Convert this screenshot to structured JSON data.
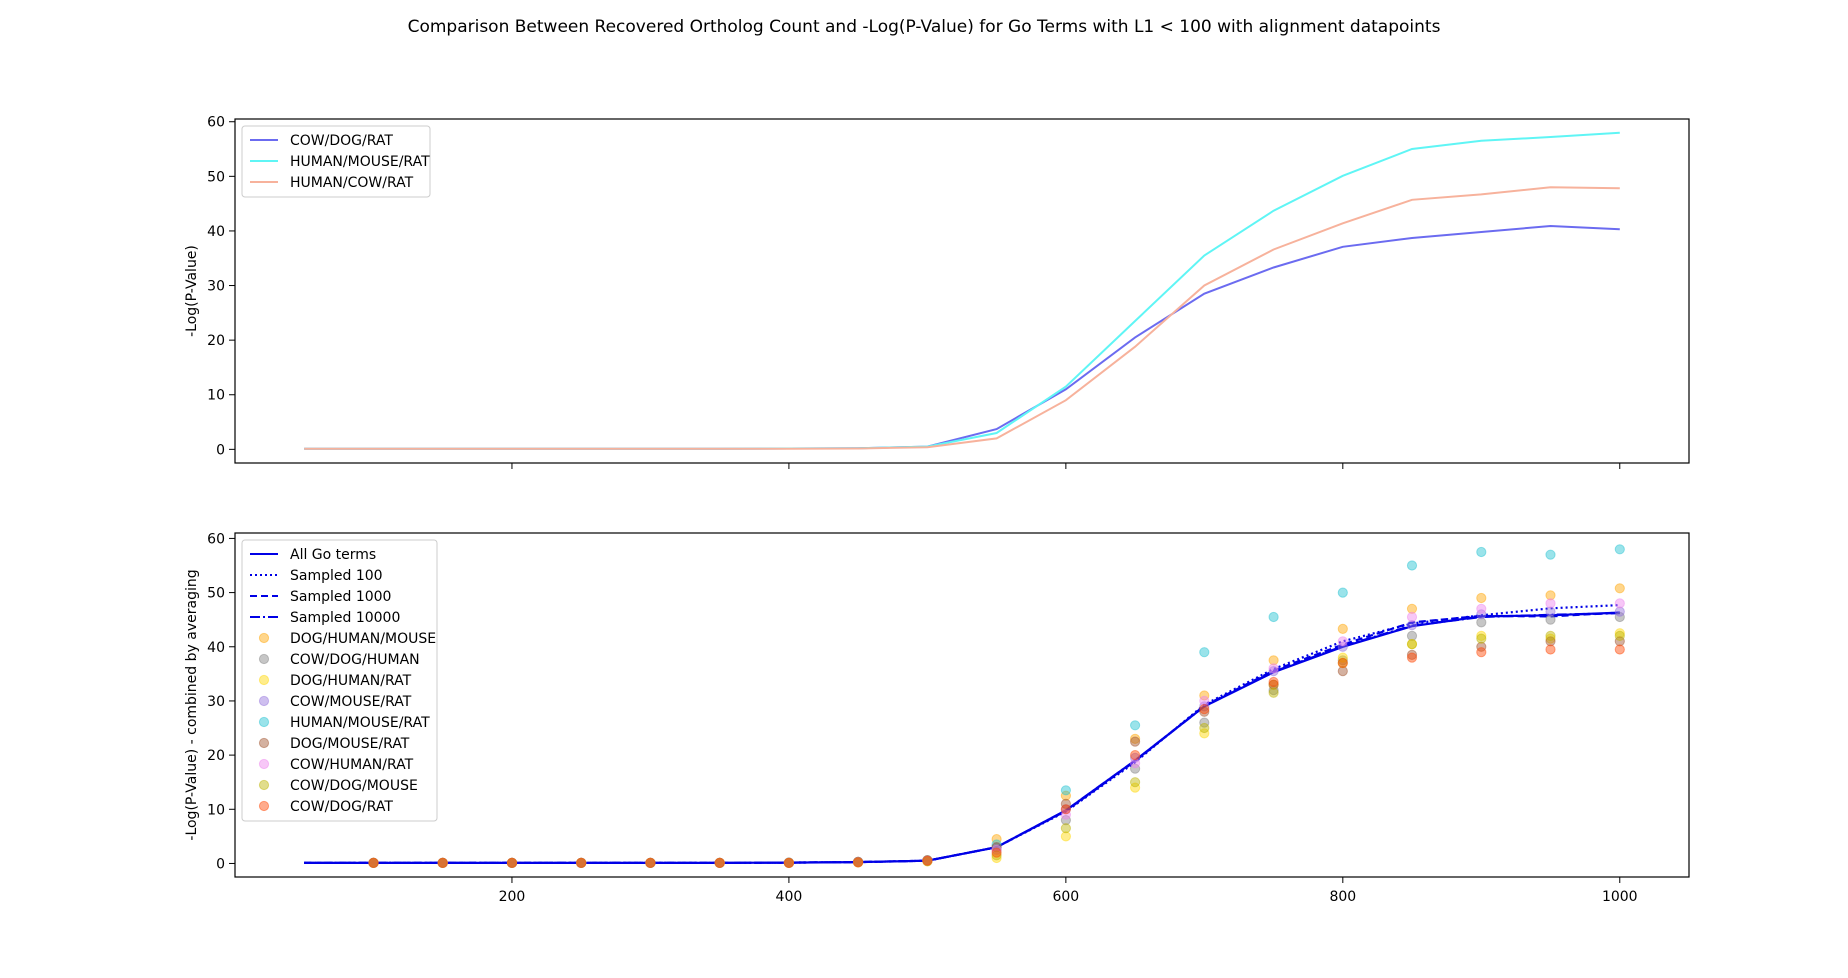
{
  "title": "Comparison Between Recovered Ortholog Count and -Log(P-Value) for Go Terms with L1 < 100 with alignment datapoints",
  "chart_data": [
    {
      "type": "line",
      "ylabel": "-Log(P-Value)",
      "xlabel": "",
      "xlim": [
        0,
        1050
      ],
      "ylim": [
        -2.5,
        60.5
      ],
      "xticks": [
        200,
        400,
        600,
        800,
        1000
      ],
      "show_xticklabels": false,
      "yticks": [
        0,
        10,
        20,
        30,
        40,
        50,
        60
      ],
      "grid": false,
      "legend": "top-left",
      "x": [
        50,
        100,
        150,
        200,
        250,
        300,
        350,
        400,
        450,
        500,
        550,
        600,
        650,
        700,
        750,
        800,
        850,
        900,
        950,
        1000
      ],
      "series": [
        {
          "name": "COW/DOG/RAT",
          "color": "#6b6bf0",
          "values": [
            0.1,
            0.1,
            0.1,
            0.1,
            0.1,
            0.1,
            0.1,
            0.15,
            0.2,
            0.5,
            3.7,
            11.0,
            20.5,
            28.5,
            33.3,
            37.1,
            38.7,
            39.8,
            40.9,
            40.3
          ]
        },
        {
          "name": "HUMAN/MOUSE/RAT",
          "color": "#5ff5f5",
          "values": [
            0.1,
            0.1,
            0.1,
            0.1,
            0.1,
            0.1,
            0.1,
            0.15,
            0.2,
            0.5,
            3.0,
            11.5,
            23.5,
            35.5,
            43.7,
            50.1,
            55.0,
            56.5,
            57.2,
            58.0
          ]
        },
        {
          "name": "HUMAN/COW/RAT",
          "color": "#f7b29c",
          "values": [
            0.1,
            0.1,
            0.1,
            0.1,
            0.1,
            0.1,
            0.1,
            0.1,
            0.15,
            0.4,
            2.0,
            9.0,
            18.8,
            30.0,
            36.6,
            41.4,
            45.7,
            46.7,
            48.0,
            47.8
          ]
        }
      ]
    },
    {
      "type": "line",
      "ylabel": "-Log(P-Value) - combined by averaging",
      "xlabel": "",
      "xlim": [
        0,
        1050
      ],
      "ylim": [
        -2.5,
        61
      ],
      "xticks": [
        200,
        400,
        600,
        800,
        1000
      ],
      "yticks": [
        0,
        10,
        20,
        30,
        40,
        50,
        60
      ],
      "grid": false,
      "legend": "top-left",
      "x": [
        50,
        100,
        150,
        200,
        250,
        300,
        350,
        400,
        450,
        500,
        550,
        600,
        650,
        700,
        750,
        800,
        850,
        900,
        950,
        1000
      ],
      "series": [
        {
          "name": "All Go terms",
          "style": "solid",
          "color": "#0000e6",
          "values": [
            0.1,
            0.1,
            0.1,
            0.1,
            0.1,
            0.1,
            0.1,
            0.15,
            0.25,
            0.5,
            3.0,
            9.8,
            19.0,
            29.0,
            35.3,
            40.0,
            43.8,
            45.6,
            45.8,
            46.3
          ]
        },
        {
          "name": "Sampled 100",
          "style": "dotted",
          "color": "#0000e6",
          "values": [
            0.1,
            0.1,
            0.1,
            0.1,
            0.1,
            0.1,
            0.1,
            0.15,
            0.25,
            0.5,
            3.0,
            9.6,
            18.7,
            29.3,
            35.9,
            41.0,
            44.3,
            45.8,
            47.1,
            47.7
          ]
        },
        {
          "name": "Sampled 1000",
          "style": "dashed",
          "color": "#0000e6",
          "values": [
            0.1,
            0.1,
            0.1,
            0.1,
            0.1,
            0.1,
            0.1,
            0.15,
            0.25,
            0.5,
            3.0,
            9.7,
            18.9,
            29.1,
            35.6,
            40.4,
            44.5,
            45.7,
            45.6,
            46.3
          ]
        },
        {
          "name": "Sampled 10000",
          "style": "dashdot",
          "color": "#0000e6",
          "values": [
            0.1,
            0.1,
            0.1,
            0.1,
            0.1,
            0.1,
            0.1,
            0.15,
            0.25,
            0.5,
            3.0,
            9.8,
            19.0,
            29.0,
            35.4,
            40.1,
            43.9,
            45.5,
            45.9,
            46.2
          ]
        }
      ],
      "scatter_x": [
        100,
        150,
        200,
        250,
        300,
        350,
        400,
        450,
        500,
        550,
        600,
        650,
        700,
        750,
        800,
        850,
        900,
        950,
        1000
      ],
      "scatter_series": [
        {
          "name": "DOG/HUMAN/MOUSE",
          "color": "#ffa500",
          "values": [
            0.1,
            0.1,
            0.1,
            0.1,
            0.1,
            0.1,
            0.15,
            0.3,
            0.6,
            4.5,
            12.5,
            23.0,
            31.0,
            37.5,
            43.3,
            47.0,
            49.0,
            49.5,
            50.8
          ]
        },
        {
          "name": "COW/DOG/HUMAN",
          "color": "#808080",
          "values": [
            0.1,
            0.1,
            0.1,
            0.1,
            0.1,
            0.1,
            0.1,
            0.25,
            0.5,
            2.5,
            8.0,
            17.5,
            26.0,
            32.0,
            37.5,
            42.0,
            44.5,
            45.0,
            45.5
          ]
        },
        {
          "name": "DOG/HUMAN/RAT",
          "color": "#ffd700",
          "values": [
            0.1,
            0.1,
            0.1,
            0.1,
            0.1,
            0.1,
            0.1,
            0.2,
            0.4,
            1.0,
            5.0,
            14.0,
            24.0,
            33.0,
            38.0,
            40.5,
            42.0,
            41.5,
            42.5
          ]
        },
        {
          "name": "COW/MOUSE/RAT",
          "color": "#9370db",
          "values": [
            0.1,
            0.1,
            0.1,
            0.1,
            0.1,
            0.1,
            0.15,
            0.3,
            0.5,
            3.0,
            10.0,
            19.5,
            29.0,
            35.5,
            40.0,
            44.0,
            46.0,
            46.5,
            46.5
          ]
        },
        {
          "name": "HUMAN/MOUSE/RAT",
          "color": "#20c0d0",
          "values": [
            0.1,
            0.1,
            0.1,
            0.1,
            0.1,
            0.1,
            0.15,
            0.3,
            0.6,
            3.5,
            13.5,
            25.5,
            39.0,
            45.5,
            50.0,
            55.0,
            57.5,
            57.0,
            58.0
          ]
        },
        {
          "name": "DOG/MOUSE/RAT",
          "color": "#a0522d",
          "values": [
            0.1,
            0.1,
            0.1,
            0.1,
            0.1,
            0.1,
            0.1,
            0.3,
            0.6,
            3.0,
            11.0,
            22.5,
            28.0,
            33.0,
            35.5,
            38.5,
            40.0,
            41.0,
            41.0
          ]
        },
        {
          "name": "COW/HUMAN/RAT",
          "color": "#ee82ee",
          "values": [
            0.1,
            0.1,
            0.1,
            0.1,
            0.1,
            0.1,
            0.1,
            0.25,
            0.5,
            2.5,
            9.0,
            18.5,
            30.0,
            36.0,
            41.0,
            45.5,
            47.0,
            48.0,
            48.0
          ]
        },
        {
          "name": "COW/DOG/MOUSE",
          "color": "#bdb300",
          "values": [
            0.1,
            0.1,
            0.1,
            0.1,
            0.1,
            0.1,
            0.1,
            0.2,
            0.4,
            1.5,
            6.5,
            15.0,
            25.0,
            31.5,
            37.0,
            40.5,
            41.5,
            42.0,
            42.0
          ]
        },
        {
          "name": "COW/DOG/RAT",
          "color": "#ff4500",
          "values": [
            0.1,
            0.1,
            0.1,
            0.1,
            0.1,
            0.1,
            0.1,
            0.2,
            0.5,
            2.0,
            10.0,
            20.0,
            28.5,
            33.5,
            37.0,
            38.0,
            39.0,
            39.5,
            39.5
          ]
        }
      ]
    }
  ]
}
